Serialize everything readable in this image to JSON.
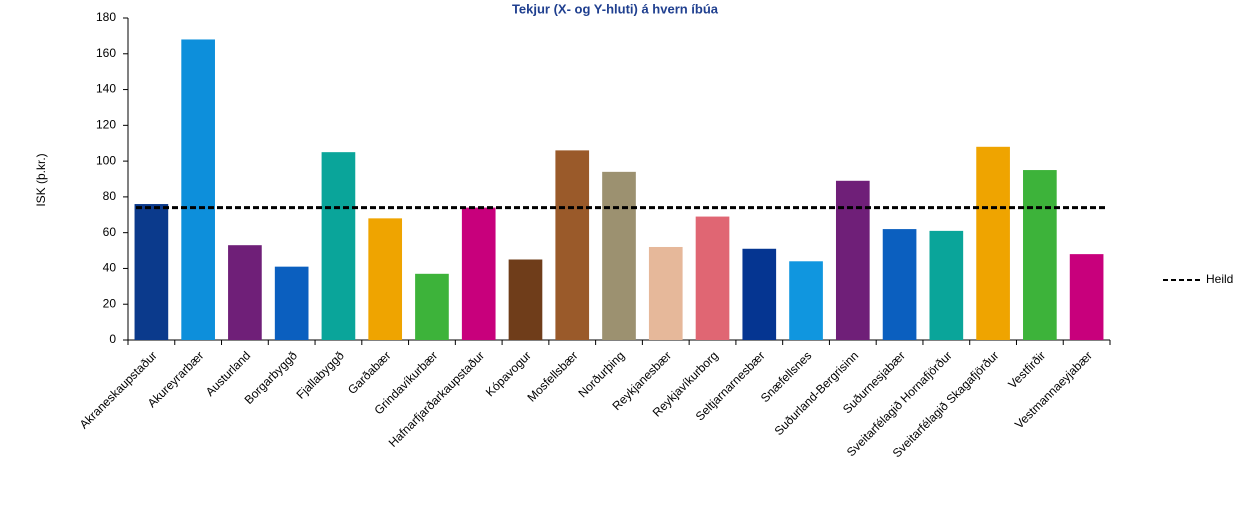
{
  "chart_data": {
    "type": "bar",
    "title": "Tekjur (X- og Y-hluti) á hvern íbúa",
    "y_label": "ISK (þ.kr.)",
    "categories": [
      "Akraneskaupstaður",
      "Akureyrarbær",
      "Austurland",
      "Borgarbyggð",
      "Fjallabyggð",
      "Garðabær",
      "Grindavíkurbær",
      "Hafnarfjarðarkaupstaður",
      "Kópavogur",
      "Mosfellsbær",
      "Norðurþing",
      "Reykjanesbær",
      "Reykjavíkurborg",
      "Seltjarnarnesbær",
      "Snæfellsnes",
      "Suðurland-Bergrisinn",
      "Suðurnesjabær",
      "Sveitarfélagið Hornafjörður",
      "Sveitarfélagið Skagafjörður",
      "Vestfirðir",
      "Vestmannaeyjabær"
    ],
    "values": [
      76,
      168,
      53,
      41,
      105,
      68,
      37,
      74,
      45,
      106,
      94,
      52,
      69,
      51,
      44,
      89,
      62,
      61,
      108,
      95,
      48
    ],
    "colors": [
      "#0b3a8c",
      "#0d8fdb",
      "#6f1f78",
      "#0b5fbf",
      "#0aa59a",
      "#efa400",
      "#3db33a",
      "#c8007c",
      "#6f3d1a",
      "#9a5a2a",
      "#9c9170",
      "#e6b89a",
      "#e06673",
      "#053591",
      "#1096df",
      "#6f1f78",
      "#0b5fbf",
      "#0aa59a",
      "#efa400",
      "#3db33a",
      "#c8007c"
    ],
    "reference_line": {
      "name": "Heild",
      "value": 74,
      "color": "#000000"
    },
    "ylim": [
      0,
      180
    ],
    "yticks": [
      0,
      20,
      40,
      60,
      80,
      100,
      120,
      140,
      160,
      180
    ]
  }
}
